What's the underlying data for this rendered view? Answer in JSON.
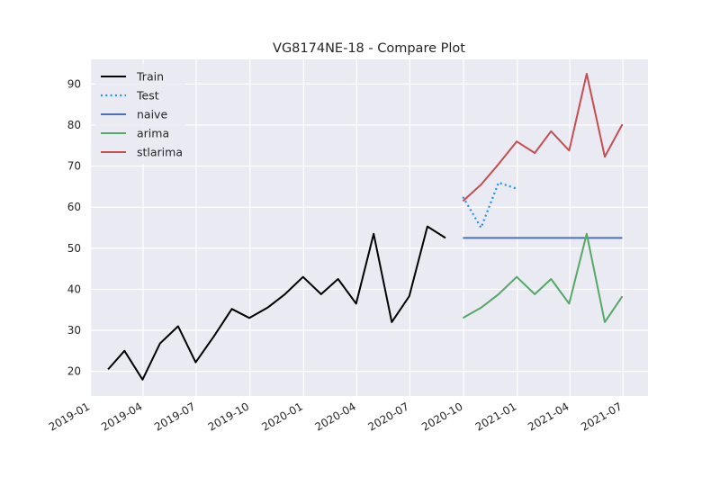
{
  "chart_data": {
    "type": "line",
    "title": "VG8174NE-18 - Compare Plot",
    "xlabel": "",
    "ylabel": "",
    "grid": true,
    "legend_position": "top-left",
    "x_ticks": [
      "2019-01-01",
      "2019-04-01",
      "2019-07-01",
      "2019-10-01",
      "2020-01-01",
      "2020-04-01",
      "2020-07-01",
      "2020-10-01",
      "2021-01-01",
      "2021-04-01",
      "2021-07-01"
    ],
    "x_tick_labels": [
      "2019-01",
      "2019-04",
      "2019-07",
      "2019-10",
      "2020-01",
      "2020-04",
      "2020-07",
      "2020-10",
      "2021-01",
      "2021-04",
      "2021-07"
    ],
    "xlim": [
      "2018-12-31",
      "2021-08-13"
    ],
    "y_ticks": [
      20,
      30,
      40,
      50,
      60,
      70,
      80,
      90
    ],
    "ylim": [
      14,
      96
    ],
    "series": [
      {
        "name": "Train",
        "color": "#000000",
        "style": "solid",
        "x": [
          "2019-01-31",
          "2019-02-28",
          "2019-03-31",
          "2019-04-30",
          "2019-05-31",
          "2019-06-30",
          "2019-07-31",
          "2019-08-31",
          "2019-09-30",
          "2019-10-31",
          "2019-11-30",
          "2019-12-31",
          "2020-01-31",
          "2020-02-29",
          "2020-03-31",
          "2020-04-30",
          "2020-05-31",
          "2020-06-30",
          "2020-07-31",
          "2020-08-31"
        ],
        "y": [
          20.5,
          25.0,
          18.0,
          26.8,
          31.0,
          22.2,
          28.5,
          35.2,
          33.0,
          35.5,
          38.8,
          43.0,
          38.8,
          42.5,
          36.5,
          53.5,
          32.0,
          38.3,
          55.3,
          52.5
        ]
      },
      {
        "name": "Test",
        "color": "#1e90ff",
        "style": "dotted",
        "x": [
          "2020-09-30",
          "2020-10-31",
          "2020-11-30",
          "2020-12-31"
        ],
        "y": [
          62.5,
          55.0,
          66.0,
          64.5
        ]
      },
      {
        "name": "naive",
        "color": "#4c72b0",
        "style": "solid",
        "x": [
          "2020-09-30",
          "2021-06-30"
        ],
        "y": [
          52.5,
          52.5
        ]
      },
      {
        "name": "arima",
        "color": "#55a868",
        "style": "solid",
        "x": [
          "2020-09-30",
          "2020-10-31",
          "2020-11-30",
          "2020-12-31",
          "2021-01-31",
          "2021-02-28",
          "2021-03-31",
          "2021-04-30",
          "2021-05-31",
          "2021-06-30"
        ],
        "y": [
          33.0,
          35.5,
          38.8,
          43.0,
          38.8,
          42.5,
          36.5,
          53.5,
          32.0,
          38.3
        ]
      },
      {
        "name": "stlarima",
        "color": "#c44e52",
        "style": "solid",
        "x": [
          "2020-09-30",
          "2020-10-31",
          "2020-11-30",
          "2020-12-31",
          "2021-01-31",
          "2021-02-28",
          "2021-03-31",
          "2021-04-30",
          "2021-05-31",
          "2021-06-30"
        ],
        "y": [
          61.5,
          65.5,
          70.5,
          76.0,
          73.2,
          78.5,
          73.8,
          92.5,
          72.3,
          80.2
        ]
      }
    ]
  }
}
